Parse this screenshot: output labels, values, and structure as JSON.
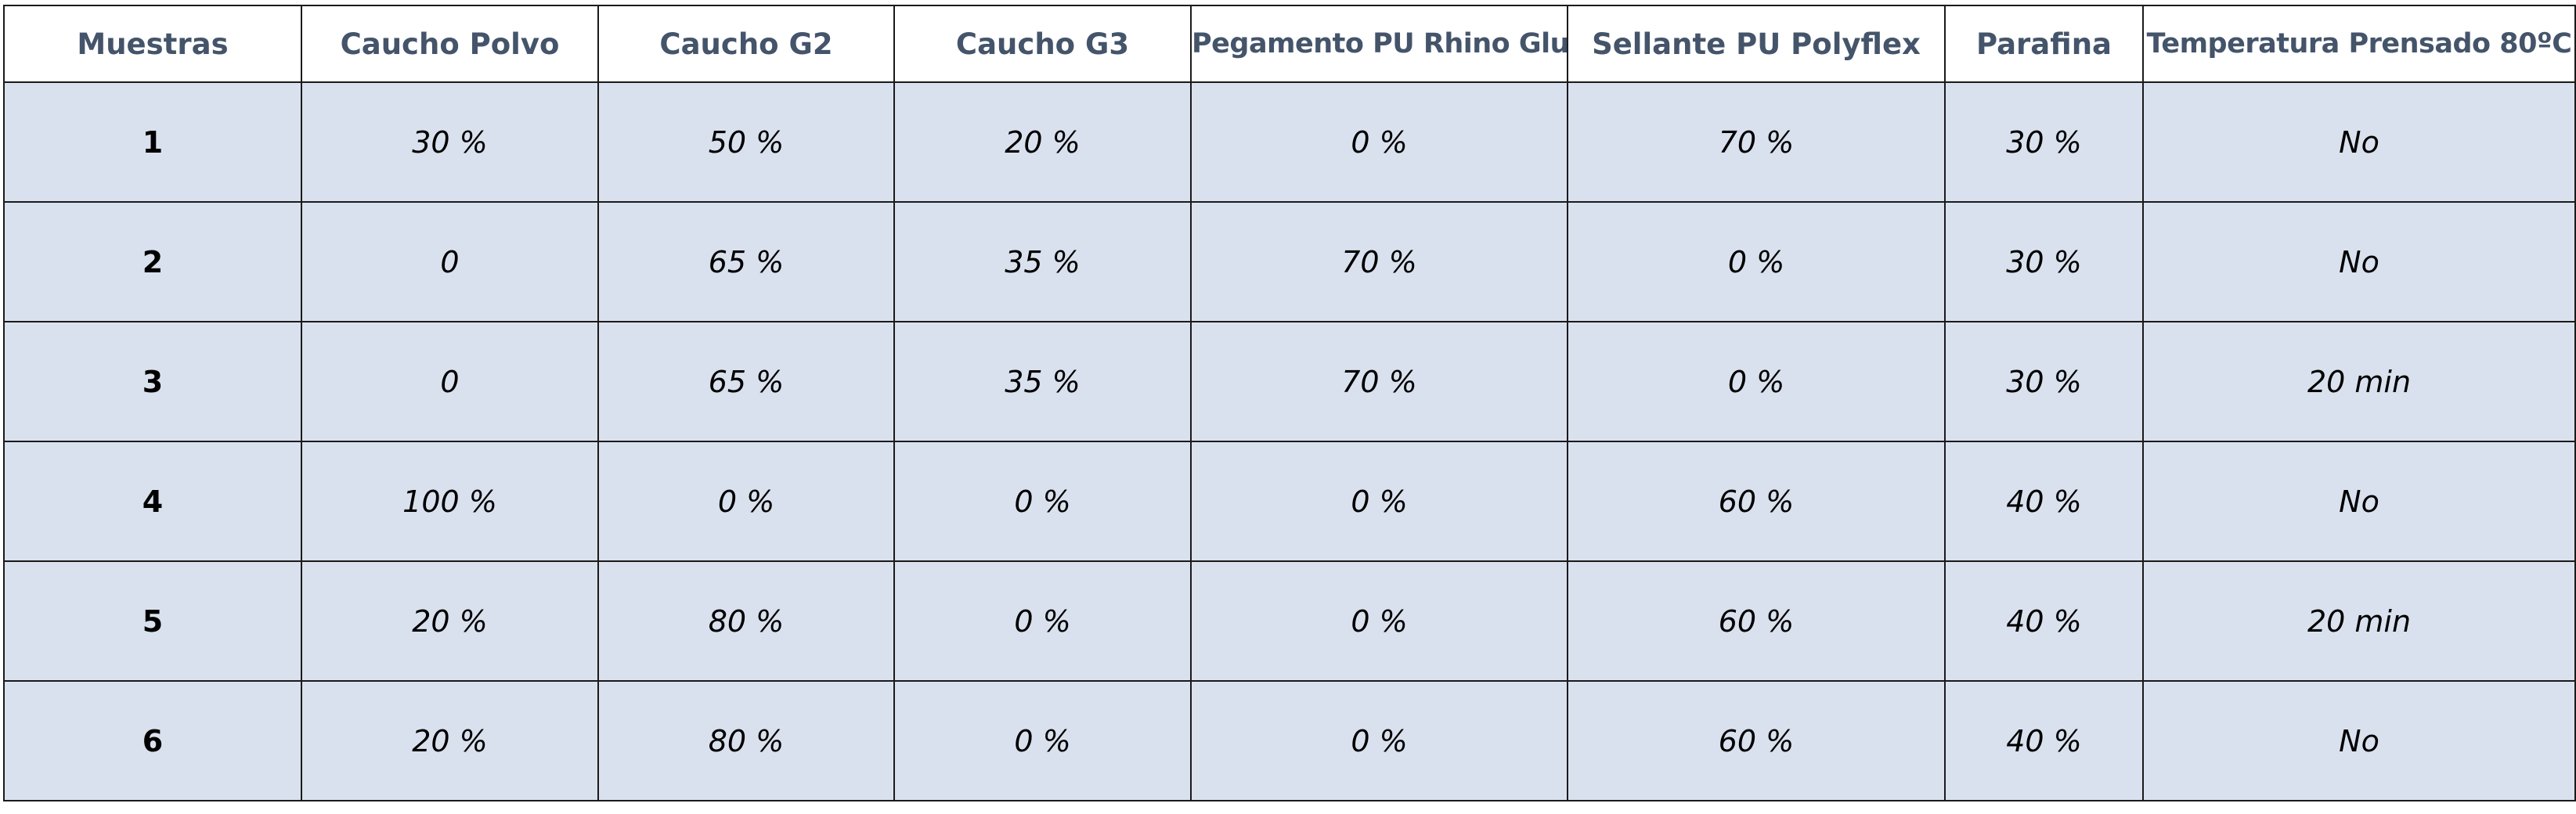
{
  "table": {
    "headers": [
      "Muestras",
      "Caucho Polvo",
      "Caucho G2",
      "Caucho G3",
      "Pegamento PU Rhino Glu",
      "Sellante PU Polyflex",
      "Parafina",
      "Temperatura Prensado 80ºC"
    ],
    "rows": [
      [
        "1",
        "30 %",
        "50 %",
        "20 %",
        "0 %",
        "70 %",
        "30 %",
        "No"
      ],
      [
        "2",
        "0",
        "65 %",
        "35 %",
        "70 %",
        "0 %",
        "30 %",
        "No"
      ],
      [
        "3",
        "0",
        "65 %",
        "35 %",
        "70 %",
        "0 %",
        "30 %",
        "20 min"
      ],
      [
        "4",
        "100 %",
        "0 %",
        "0 %",
        "0 %",
        "60 %",
        "40 %",
        "No"
      ],
      [
        "5",
        "20 %",
        "80 %",
        "0 %",
        "0 %",
        "60 %",
        "40 %",
        "20 min"
      ],
      [
        "6",
        "20 %",
        "80 %",
        "0 %",
        "0 %",
        "60 %",
        "40 %",
        "No"
      ]
    ]
  },
  "colors": {
    "header_text": "#44546a",
    "row_fill": "#dae1ee",
    "border": "#1a1a1a"
  }
}
